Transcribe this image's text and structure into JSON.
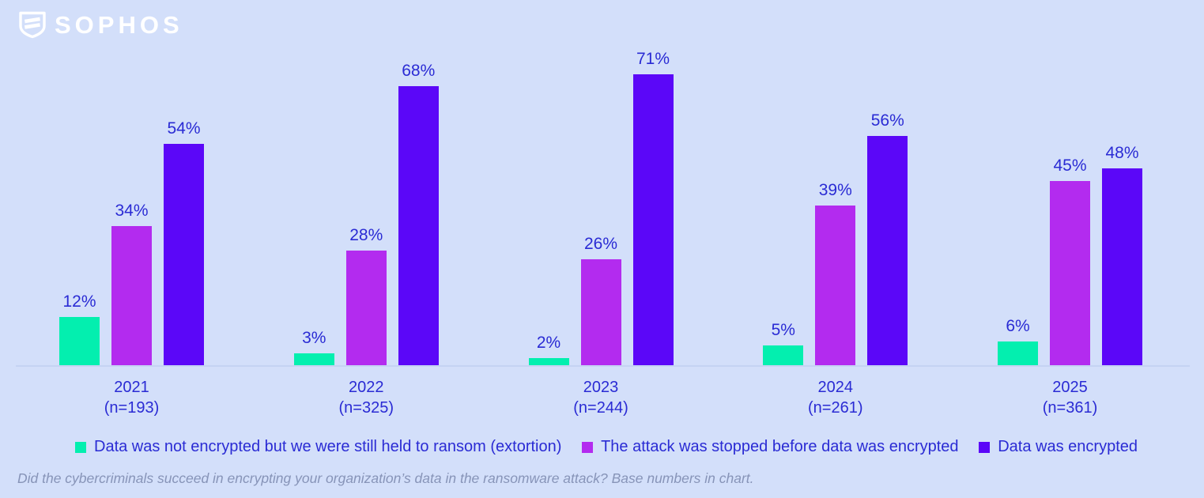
{
  "logo": {
    "brand": "SOPHOS"
  },
  "chart_data": {
    "type": "bar",
    "title": "",
    "categories": [
      "2021",
      "2022",
      "2023",
      "2024",
      "2025"
    ],
    "category_sublabels": [
      "(n=193)",
      "(n=325)",
      "(n=244)",
      "(n=261)",
      "(n=361)"
    ],
    "series": [
      {
        "name": "Data was not encrypted but we were still held to ransom (extortion)",
        "color": "#03efaf",
        "values": [
          12,
          3,
          2,
          5,
          6
        ]
      },
      {
        "name": "The attack was stopped before data was encrypted",
        "color": "#b32bef",
        "values": [
          34,
          28,
          26,
          39,
          45
        ]
      },
      {
        "name": "Data was encrypted",
        "color": "#5b07f8",
        "values": [
          54,
          68,
          71,
          56,
          48
        ]
      }
    ],
    "value_suffix": "%",
    "ylim": [
      0,
      80
    ],
    "grid": false,
    "legend_position": "bottom"
  },
  "footnote": {
    "text": "Did the cybercriminals succeed in encrypting your organization’s data in the ransomware attack?  Base numbers in chart."
  },
  "colors": {
    "background": "#d3dffa",
    "label_text": "#2a2bd4",
    "footnote_text": "#8794b8",
    "baseline": "#c5d3f3",
    "logo": "#ffffff"
  }
}
